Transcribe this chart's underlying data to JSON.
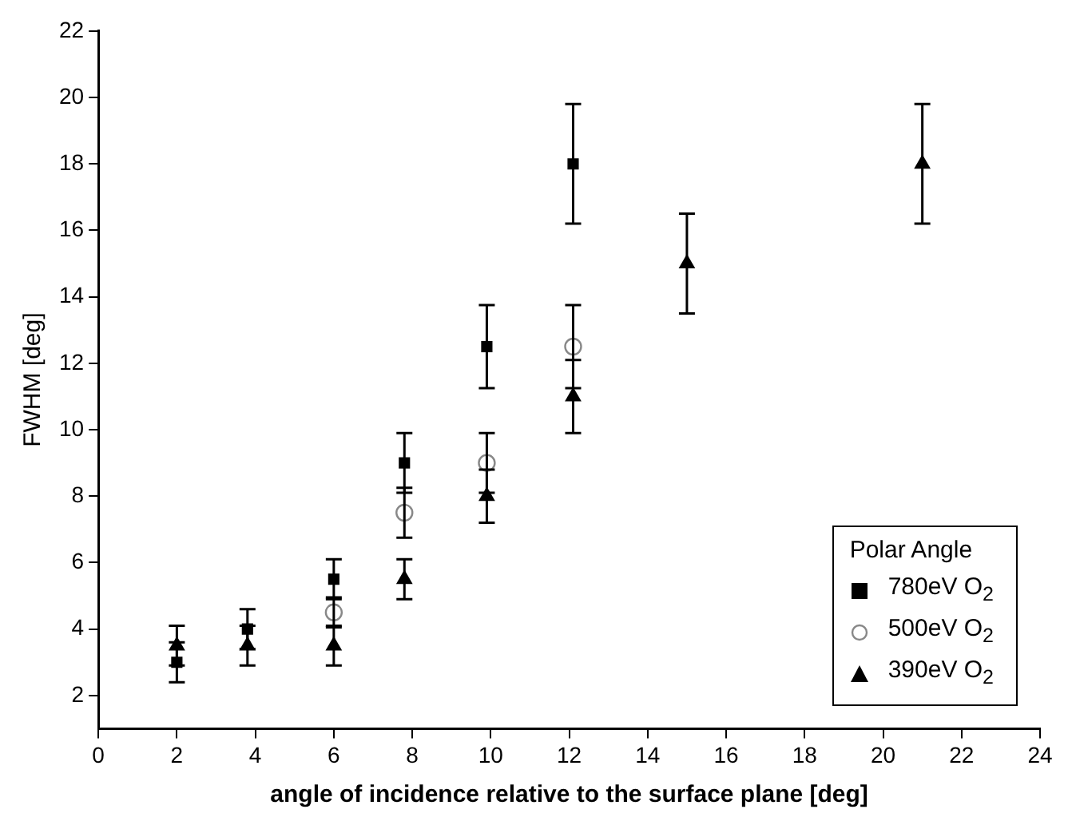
{
  "chart_data": {
    "type": "scatter",
    "xlabel": "angle of incidence relative to the surface plane [deg]",
    "ylabel": "FWHM [deg]",
    "legend_title": "Polar Angle",
    "legend": "bottom right",
    "grid": false,
    "xlim": [
      0,
      24
    ],
    "xticks": [
      0,
      2,
      4,
      6,
      8,
      10,
      12,
      14,
      16,
      18,
      20,
      22,
      24
    ],
    "ylim": [
      1,
      22
    ],
    "yticks": [
      2,
      4,
      6,
      8,
      10,
      12,
      14,
      16,
      18,
      20,
      22
    ],
    "series": [
      {
        "name": "780eV O$_{2}$",
        "color": "#000000",
        "marker": "square",
        "x": [
          2,
          3.8,
          6,
          7.8,
          9.9,
          12.1
        ],
        "values": [
          3,
          4,
          5.5,
          9,
          12.5,
          18
        ],
        "errors": [
          0.6,
          0.6,
          0.6,
          0.9,
          1.25,
          1.8
        ]
      },
      {
        "name": "500eV O$_{2}$",
        "color": "#888888",
        "marker": "circle",
        "x": [
          6,
          7.8,
          9.9,
          12.1
        ],
        "values": [
          4.5,
          7.5,
          9,
          12.5
        ],
        "errors": [
          0.45,
          0.75,
          0.9,
          1.25
        ]
      },
      {
        "name": "390eV O$_{2}$",
        "color": "#000000",
        "marker": "triangle",
        "x": [
          2,
          3.8,
          6,
          7.8,
          9.9,
          12.1,
          15,
          21
        ],
        "values": [
          3.5,
          3.5,
          3.5,
          5.5,
          8,
          11,
          15,
          18
        ],
        "errors": [
          0.6,
          0.6,
          0.6,
          0.6,
          0.8,
          1.1,
          1.5,
          1.8
        ]
      }
    ]
  }
}
